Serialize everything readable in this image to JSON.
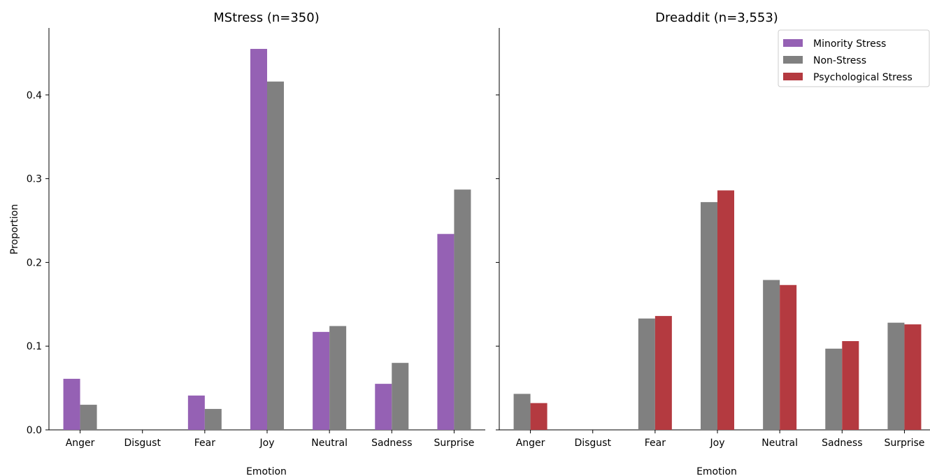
{
  "chart_data": [
    {
      "type": "bar",
      "title": "MStress (n=350)",
      "xlabel": "Emotion",
      "ylabel": "Proportion",
      "ylim": [
        0,
        0.48
      ],
      "yticks": [
        "0.0",
        "0.1",
        "0.2",
        "0.3",
        "0.4"
      ],
      "categories": [
        "Anger",
        "Disgust",
        "Fear",
        "Joy",
        "Neutral",
        "Sadness",
        "Surprise"
      ],
      "series": [
        {
          "name": "Minority Stress",
          "color": "#9561B4",
          "values": [
            0.061,
            0.0,
            0.041,
            0.455,
            0.117,
            0.055,
            0.234
          ]
        },
        {
          "name": "Non-Stress",
          "color": "#808080",
          "values": [
            0.03,
            0.0,
            0.025,
            0.416,
            0.124,
            0.08,
            0.287
          ]
        }
      ]
    },
    {
      "type": "bar",
      "title": "Dreaddit (n=3,553)",
      "xlabel": "Emotion",
      "ylabel": "",
      "ylim": [
        0,
        0.48
      ],
      "categories": [
        "Anger",
        "Disgust",
        "Fear",
        "Joy",
        "Neutral",
        "Sadness",
        "Surprise"
      ],
      "series": [
        {
          "name": "Non-Stress",
          "color": "#808080",
          "values": [
            0.043,
            0.0,
            0.133,
            0.272,
            0.179,
            0.097,
            0.128
          ]
        },
        {
          "name": "Psychological Stress",
          "color": "#B43A40",
          "values": [
            0.032,
            0.0,
            0.136,
            0.286,
            0.173,
            0.106,
            0.126
          ]
        }
      ]
    }
  ],
  "legend": {
    "placement": "top-right",
    "entries": [
      {
        "label": "Minority Stress",
        "color": "#9561B4"
      },
      {
        "label": "Non-Stress",
        "color": "#808080"
      },
      {
        "label": "Psychological Stress",
        "color": "#B43A40"
      }
    ]
  }
}
